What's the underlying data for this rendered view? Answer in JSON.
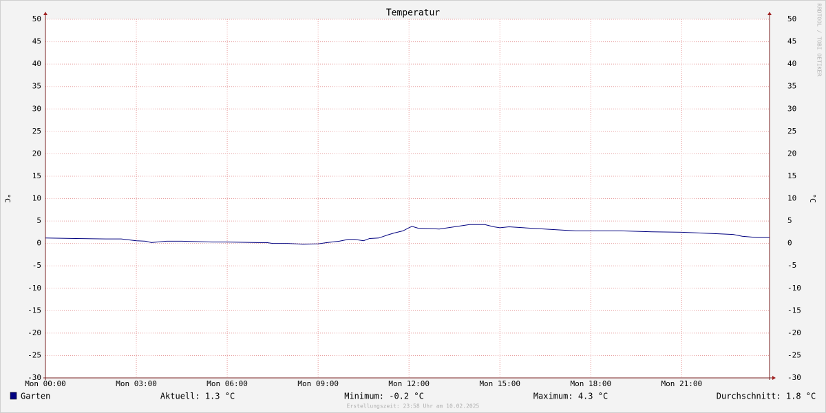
{
  "chart_data": {
    "type": "line",
    "title": "Temperatur",
    "y_label": "°C",
    "x": [
      0,
      1,
      2,
      2.5,
      3,
      3.3,
      3.5,
      4,
      4.5,
      5,
      5.5,
      6,
      7,
      7.3,
      7.5,
      8,
      8.5,
      9,
      9.3,
      9.7,
      10,
      10.2,
      10.5,
      10.7,
      11,
      11.3,
      11.5,
      11.8,
      12,
      12.1,
      12.3,
      13,
      13.5,
      14,
      14.5,
      14.8,
      15,
      15.3,
      16,
      17,
      17.5,
      18,
      19,
      20,
      21,
      22,
      22.7,
      23,
      23.5,
      23.9
    ],
    "series": [
      {
        "name": "Garten",
        "color": "#00007f",
        "values": [
          1.2,
          1.1,
          1.0,
          1.0,
          0.6,
          0.5,
          0.2,
          0.5,
          0.5,
          0.4,
          0.3,
          0.3,
          0.2,
          0.2,
          0.0,
          0.0,
          -0.2,
          -0.1,
          0.2,
          0.5,
          0.9,
          0.9,
          0.6,
          1.1,
          1.2,
          1.9,
          2.3,
          2.8,
          3.5,
          3.8,
          3.4,
          3.2,
          3.7,
          4.2,
          4.2,
          3.7,
          3.5,
          3.7,
          3.4,
          3.0,
          2.8,
          2.8,
          2.8,
          2.6,
          2.5,
          2.2,
          2.0,
          1.6,
          1.3,
          1.3
        ]
      }
    ],
    "xlim": [
      0,
      23.9
    ],
    "xticks": [
      {
        "value": 0,
        "label": "Mon 00:00"
      },
      {
        "value": 3,
        "label": "Mon 03:00"
      },
      {
        "value": 6,
        "label": "Mon 06:00"
      },
      {
        "value": 9,
        "label": "Mon 09:00"
      },
      {
        "value": 12,
        "label": "Mon 12:00"
      },
      {
        "value": 15,
        "label": "Mon 15:00"
      },
      {
        "value": 18,
        "label": "Mon 18:00"
      },
      {
        "value": 21,
        "label": "Mon 21:00"
      }
    ],
    "ylim": [
      -30,
      50
    ],
    "yticks": [
      -30,
      -25,
      -20,
      -15,
      -10,
      -5,
      0,
      5,
      10,
      15,
      20,
      25,
      30,
      35,
      40,
      45,
      50
    ],
    "grid": true,
    "stats": [
      "Aktuell: 1.3 °C",
      "Minimum: -0.2 °C",
      "Maximum: 4.3 °C",
      "Durchschnitt: 1.8 °C"
    ]
  },
  "watermark": "RRDTOOL / TOBI OETIKER",
  "footer": "Erstellungszeit: 23:58 Uhr am 10.02.2025"
}
